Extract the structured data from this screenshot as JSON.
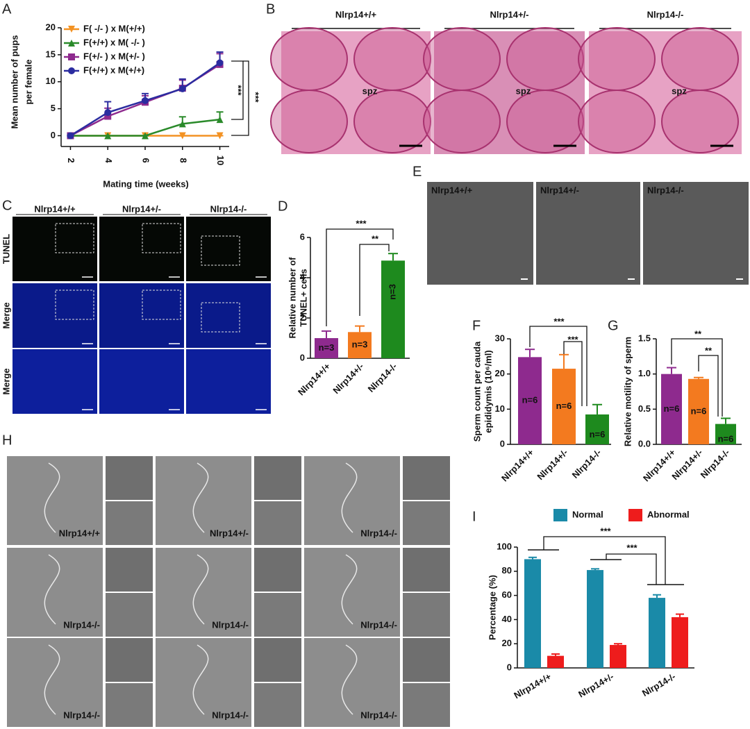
{
  "chart_data": [
    {
      "type": "line",
      "panel": "A",
      "ylabel": [
        "Mean number of pups",
        "per female"
      ],
      "xlabel": "Mating time (weeks)",
      "x": [
        2,
        4,
        6,
        8,
        10
      ],
      "xlim": [
        1.5,
        10.5
      ],
      "xticks": [
        2,
        4,
        6,
        8,
        10
      ],
      "ylim": [
        -2,
        20
      ],
      "yticks": [
        0,
        5,
        10,
        15,
        20
      ],
      "legend": "upper left",
      "series": [
        {
          "name": "F( -/- ) x M(+/+)",
          "color": "#f39223",
          "marker": "triangle-down",
          "values": [
            0,
            0,
            0,
            0,
            0
          ],
          "error": [
            0,
            0,
            0,
            0,
            0
          ]
        },
        {
          "name": "F(+/+) x M( -/- )",
          "color": "#2a8a2a",
          "marker": "triangle-up",
          "values": [
            0,
            0,
            0,
            2.2,
            3
          ],
          "error": [
            0,
            0,
            0,
            1.3,
            1.4
          ]
        },
        {
          "name": "F(+/- ) x M(+/- )",
          "color": "#8e2a8e",
          "marker": "square",
          "values": [
            0,
            3.6,
            6.2,
            8.8,
            13.2
          ],
          "error": [
            0,
            1.5,
            1.2,
            1.5,
            2
          ]
        },
        {
          "name": "F(+/+) x M(+/+)",
          "color": "#2b2ca0",
          "marker": "circle",
          "values": [
            0,
            4.3,
            6.5,
            8.7,
            13.5
          ],
          "error": [
            0,
            2,
            1.3,
            1.8,
            2
          ]
        }
      ],
      "annotations": [
        "***",
        "***"
      ]
    },
    {
      "type": "bar",
      "panel": "D",
      "ylabel": [
        "Relative number of",
        "TUNEL+ cells"
      ],
      "categories": [
        "Nlrp14+/+",
        "Nlrp14+/-",
        "Nlrp14-/-"
      ],
      "values": [
        1,
        1.3,
        4.85
      ],
      "error": [
        0.35,
        0.3,
        0.35
      ],
      "colors": [
        "#8e2a8e",
        "#f37a1f",
        "#1e8a1e"
      ],
      "bar_labels": [
        "n=3",
        "n=3",
        "n=3"
      ],
      "ylim": [
        0,
        6
      ],
      "yticks": [
        0,
        2,
        4,
        6
      ],
      "annotations": [
        "***",
        "**"
      ]
    },
    {
      "type": "bar",
      "panel": "F",
      "ylabel": [
        "Sperm count per cauda",
        "epididymis (10⁶/ml)"
      ],
      "categories": [
        "Nlrp14+/+",
        "Nlrp14+/-",
        "Nlrp14-/-"
      ],
      "values": [
        24.8,
        21.5,
        8.5
      ],
      "error": [
        2.2,
        4,
        2.8
      ],
      "colors": [
        "#8e2a8e",
        "#f37a1f",
        "#1e8a1e"
      ],
      "bar_labels": [
        "n=6",
        "n=6",
        "n=6"
      ],
      "ylim": [
        0,
        30
      ],
      "yticks": [
        0,
        10,
        20,
        30
      ],
      "annotations": [
        "***",
        "***"
      ]
    },
    {
      "type": "bar",
      "panel": "G",
      "ylabel": [
        "Relative motility of sperm"
      ],
      "categories": [
        "Nlrp14+/+",
        "Nlrp14+/-",
        "Nlrp14-/-"
      ],
      "values": [
        1.0,
        0.93,
        0.29
      ],
      "error": [
        0.09,
        0.02,
        0.08
      ],
      "colors": [
        "#8e2a8e",
        "#f37a1f",
        "#1e8a1e"
      ],
      "bar_labels": [
        "n=6",
        "n=6",
        "n=6"
      ],
      "ylim": [
        0,
        1.5
      ],
      "yticks": [
        {
          "value": 0,
          "label": "0.0"
        },
        0.5,
        {
          "value": 1,
          "label": "1.0"
        },
        1.5
      ],
      "annotations": [
        "**",
        "**"
      ]
    },
    {
      "type": "grouped-bar",
      "panel": "I",
      "ylabel": [
        "Percentage (%)"
      ],
      "legend": "top",
      "categories": [
        "Nlrp14+/+",
        "Nlrp14+/-",
        "Nlrp14-/-"
      ],
      "series": [
        {
          "name": "Normal",
          "color": "#1a8aa8",
          "values": [
            90,
            81,
            58
          ],
          "error": [
            1.5,
            1,
            2.5
          ]
        },
        {
          "name": "Abnormal",
          "color": "#ee1c1c",
          "values": [
            10,
            19,
            42
          ],
          "error": [
            1.5,
            1,
            2.5
          ]
        }
      ],
      "ylim": [
        0,
        100
      ],
      "yticks": [
        0,
        20,
        40,
        60,
        80,
        100
      ],
      "annotations": [
        "***",
        "***"
      ]
    }
  ],
  "panel_B": {
    "panel": "B",
    "columns": [
      "Nlrp14+/+",
      "Nlrp14+/-",
      "Nlrp14-/-"
    ],
    "annotations": [
      "spz",
      "spz",
      "spz"
    ]
  },
  "panel_C": {
    "panel": "C",
    "columns": [
      "Nlrp14+/+",
      "Nlrp14+/-",
      "Nlrp14-/-"
    ],
    "rows": [
      "TUNEL",
      "Merge",
      "Merge"
    ]
  },
  "panel_E": {
    "panel": "E",
    "labels": [
      "Nlrp14+/+",
      "Nlrp14+/-",
      "Nlrp14-/-"
    ]
  },
  "panel_H": {
    "panel": "H",
    "labels": [
      "Nlrp14+/+",
      "Nlrp14+/-",
      "Nlrp14-/-",
      "Nlrp14-/-",
      "Nlrp14-/-",
      "Nlrp14-/-",
      "Nlrp14-/-",
      "Nlrp14-/-",
      "Nlrp14-/-"
    ]
  }
}
